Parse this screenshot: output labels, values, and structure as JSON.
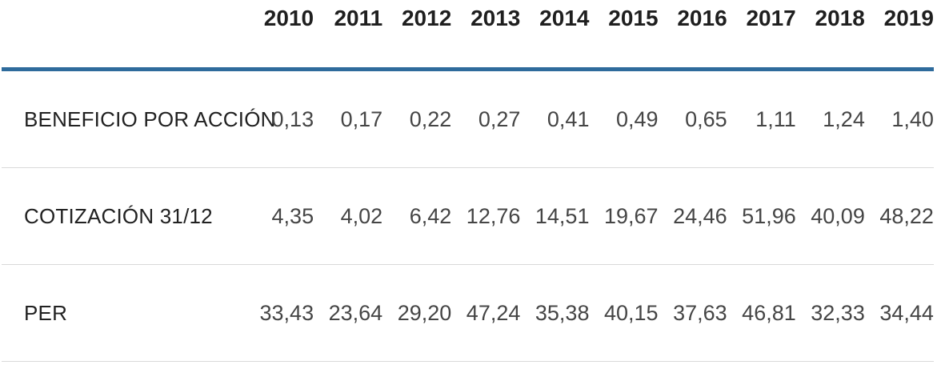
{
  "theme": {
    "accent_rule_color": "#2e6b9c",
    "divider_color": "#d9d9d9",
    "header_text_color": "#1f1f1f",
    "label_text_color": "#212121",
    "value_text_color": "#454545",
    "background_color": "#ffffff"
  },
  "table": {
    "columns": [
      "2010",
      "2011",
      "2012",
      "2013",
      "2014",
      "2015",
      "2016",
      "2017",
      "2018",
      "2019"
    ],
    "rows": [
      {
        "label": "BENEFICIO POR ACCIÓN",
        "values": [
          "0,13",
          "0,17",
          "0,22",
          "0,27",
          "0,41",
          "0,49",
          "0,65",
          "1,11",
          "1,24",
          "1,40"
        ]
      },
      {
        "label": "COTIZACIÓN 31/12",
        "values": [
          "4,35",
          "4,02",
          "6,42",
          "12,76",
          "14,51",
          "19,67",
          "24,46",
          "51,96",
          "40,09",
          "48,22"
        ]
      },
      {
        "label": "PER",
        "values": [
          "33,43",
          "23,64",
          "29,20",
          "47,24",
          "35,38",
          "40,15",
          "37,63",
          "46,81",
          "32,33",
          "34,44"
        ]
      }
    ]
  },
  "chart_data": {
    "type": "table",
    "title": "",
    "columns": [
      2010,
      2011,
      2012,
      2013,
      2014,
      2015,
      2016,
      2017,
      2018,
      2019
    ],
    "rows": [
      {
        "label": "BENEFICIO POR ACCIÓN",
        "values": [
          0.13,
          0.17,
          0.22,
          0.27,
          0.41,
          0.49,
          0.65,
          1.11,
          1.24,
          1.4
        ]
      },
      {
        "label": "COTIZACIÓN 31/12",
        "values": [
          4.35,
          4.02,
          6.42,
          12.76,
          14.51,
          19.67,
          24.46,
          51.96,
          40.09,
          48.22
        ]
      },
      {
        "label": "PER",
        "values": [
          33.43,
          23.64,
          29.2,
          47.24,
          35.38,
          40.15,
          37.63,
          46.81,
          32.33,
          34.44
        ]
      }
    ],
    "number_format": "decimal comma (es-ES)",
    "layout": {
      "header_rule": "thick blue under header row",
      "row_dividers": "thin light gray under each data row",
      "value_alignment": "right"
    }
  }
}
